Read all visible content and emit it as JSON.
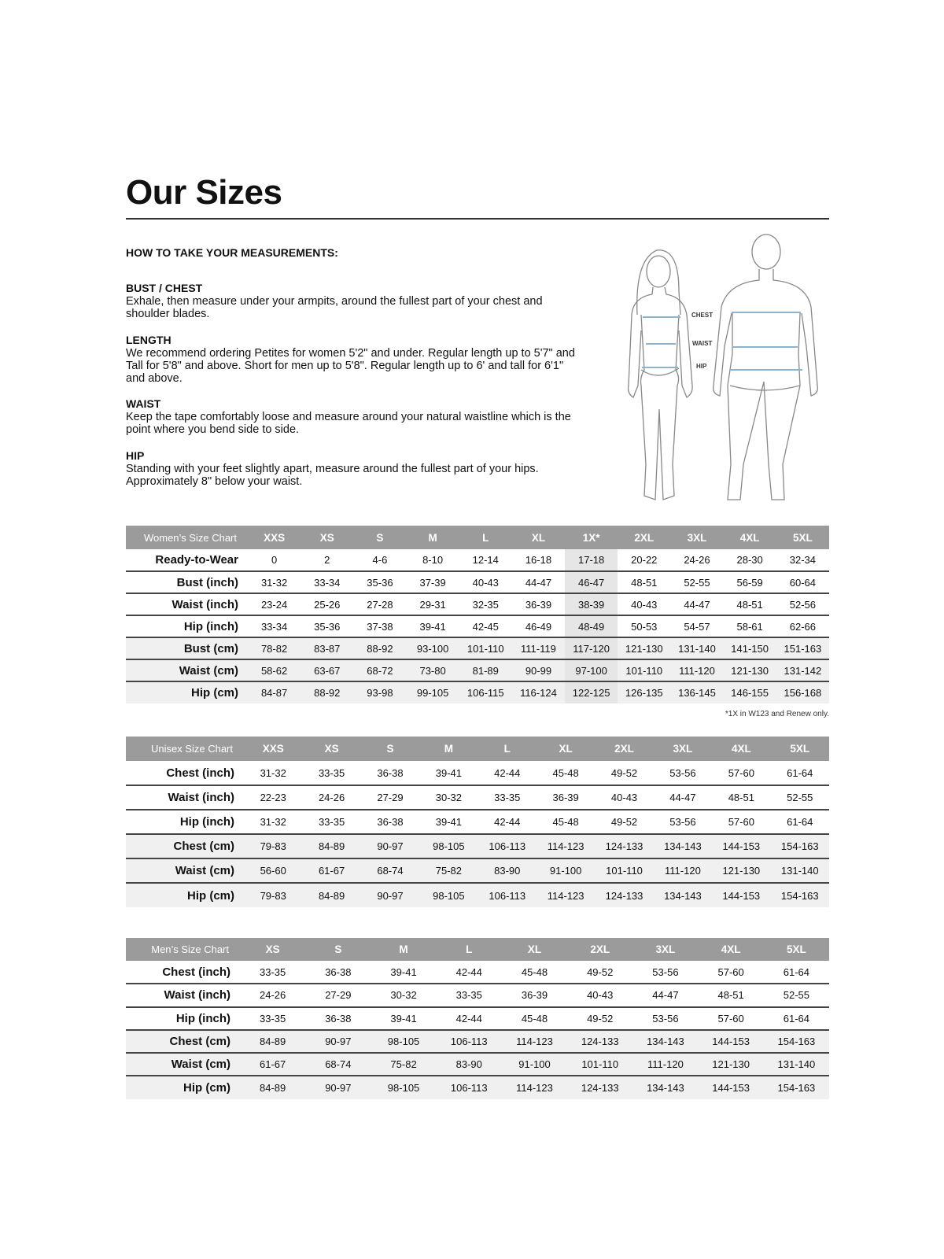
{
  "title": "Our Sizes",
  "howto": "HOW TO TAKE YOUR MEASUREMENTS:",
  "sections": [
    {
      "heading": "BUST / CHEST",
      "text": "Exhale, then measure under your armpits, around the fullest part of your chest and shoulder blades."
    },
    {
      "heading": "LENGTH",
      "text": "We recommend ordering Petites for women 5'2\" and under. Regular length up to 5'7\" and Tall for 5'8\" and above. Short for men up to 5'8\". Regular length up to 6' and tall for 6'1\" and above."
    },
    {
      "heading": "WAIST",
      "text": "Keep the tape comfortably loose and measure around your natural waistline which is the point where you bend side to side."
    },
    {
      "heading": "HIP",
      "text": "Standing with your feet slightly apart, measure around the fullest part of your hips. Approximately 8\" below your waist."
    }
  ],
  "figure_labels": {
    "chest": "CHEST",
    "waist": "WAIST",
    "hip": "HIP"
  },
  "colors": {
    "header_bg": "#9b9b9b",
    "cm_row_bg": "#f0f0f0",
    "highlight_col": "#e6e6e6",
    "measure_line": "#8fb3cc"
  },
  "women": {
    "title": "Women’s Size Chart",
    "sizes": [
      "XXS",
      "XS",
      "S",
      "M",
      "L",
      "XL",
      "1X*",
      "2XL",
      "3XL",
      "4XL",
      "5XL"
    ],
    "highlight_index": 6,
    "rows": [
      {
        "label": "Ready-to-Wear",
        "cm": false,
        "values": [
          "0",
          "2",
          "4-6",
          "8-10",
          "12-14",
          "16-18",
          "17-18",
          "20-22",
          "24-26",
          "28-30",
          "32-34"
        ]
      },
      {
        "label": "Bust (inch)",
        "cm": false,
        "values": [
          "31-32",
          "33-34",
          "35-36",
          "37-39",
          "40-43",
          "44-47",
          "46-47",
          "48-51",
          "52-55",
          "56-59",
          "60-64"
        ]
      },
      {
        "label": "Waist (inch)",
        "cm": false,
        "values": [
          "23-24",
          "25-26",
          "27-28",
          "29-31",
          "32-35",
          "36-39",
          "38-39",
          "40-43",
          "44-47",
          "48-51",
          "52-56"
        ]
      },
      {
        "label": "Hip (inch)",
        "cm": false,
        "values": [
          "33-34",
          "35-36",
          "37-38",
          "39-41",
          "42-45",
          "46-49",
          "48-49",
          "50-53",
          "54-57",
          "58-61",
          "62-66"
        ]
      },
      {
        "label": "Bust (cm)",
        "cm": true,
        "values": [
          "78-82",
          "83-87",
          "88-92",
          "93-100",
          "101-110",
          "111-119",
          "117-120",
          "121-130",
          "131-140",
          "141-150",
          "151-163"
        ]
      },
      {
        "label": "Waist (cm)",
        "cm": true,
        "values": [
          "58-62",
          "63-67",
          "68-72",
          "73-80",
          "81-89",
          "90-99",
          "97-100",
          "101-110",
          "111-120",
          "121-130",
          "131-142"
        ]
      },
      {
        "label": "Hip (cm)",
        "cm": true,
        "values": [
          "84-87",
          "88-92",
          "93-98",
          "99-105",
          "106-115",
          "116-124",
          "122-125",
          "126-135",
          "136-145",
          "146-155",
          "156-168"
        ]
      }
    ],
    "footnote": "*1X in W123 and Renew only."
  },
  "unisex": {
    "title": "Unisex Size Chart",
    "sizes": [
      "XXS",
      "XS",
      "S",
      "M",
      "L",
      "XL",
      "2XL",
      "3XL",
      "4XL",
      "5XL"
    ],
    "rows": [
      {
        "label": "Chest (inch)",
        "cm": false,
        "values": [
          "31-32",
          "33-35",
          "36-38",
          "39-41",
          "42-44",
          "45-48",
          "49-52",
          "53-56",
          "57-60",
          "61-64"
        ]
      },
      {
        "label": "Waist (inch)",
        "cm": false,
        "values": [
          "22-23",
          "24-26",
          "27-29",
          "30-32",
          "33-35",
          "36-39",
          "40-43",
          "44-47",
          "48-51",
          "52-55"
        ]
      },
      {
        "label": "Hip (inch)",
        "cm": false,
        "values": [
          "31-32",
          "33-35",
          "36-38",
          "39-41",
          "42-44",
          "45-48",
          "49-52",
          "53-56",
          "57-60",
          "61-64"
        ]
      },
      {
        "label": "Chest (cm)",
        "cm": true,
        "values": [
          "79-83",
          "84-89",
          "90-97",
          "98-105",
          "106-113",
          "114-123",
          "124-133",
          "134-143",
          "144-153",
          "154-163"
        ]
      },
      {
        "label": "Waist (cm)",
        "cm": true,
        "values": [
          "56-60",
          "61-67",
          "68-74",
          "75-82",
          "83-90",
          "91-100",
          "101-110",
          "111-120",
          "121-130",
          "131-140"
        ]
      },
      {
        "label": "Hip (cm)",
        "cm": true,
        "values": [
          "79-83",
          "84-89",
          "90-97",
          "98-105",
          "106-113",
          "114-123",
          "124-133",
          "134-143",
          "144-153",
          "154-163"
        ]
      }
    ]
  },
  "men": {
    "title": "Men’s Size Chart",
    "sizes": [
      "XS",
      "S",
      "M",
      "L",
      "XL",
      "2XL",
      "3XL",
      "4XL",
      "5XL"
    ],
    "rows": [
      {
        "label": "Chest (inch)",
        "cm": false,
        "values": [
          "33-35",
          "36-38",
          "39-41",
          "42-44",
          "45-48",
          "49-52",
          "53-56",
          "57-60",
          "61-64"
        ]
      },
      {
        "label": "Waist (inch)",
        "cm": false,
        "values": [
          "24-26",
          "27-29",
          "30-32",
          "33-35",
          "36-39",
          "40-43",
          "44-47",
          "48-51",
          "52-55"
        ]
      },
      {
        "label": "Hip (inch)",
        "cm": false,
        "values": [
          "33-35",
          "36-38",
          "39-41",
          "42-44",
          "45-48",
          "49-52",
          "53-56",
          "57-60",
          "61-64"
        ]
      },
      {
        "label": "Chest (cm)",
        "cm": true,
        "values": [
          "84-89",
          "90-97",
          "98-105",
          "106-113",
          "114-123",
          "124-133",
          "134-143",
          "144-153",
          "154-163"
        ]
      },
      {
        "label": "Waist (cm)",
        "cm": true,
        "values": [
          "61-67",
          "68-74",
          "75-82",
          "83-90",
          "91-100",
          "101-110",
          "111-120",
          "121-130",
          "131-140"
        ]
      },
      {
        "label": "Hip (cm)",
        "cm": true,
        "values": [
          "84-89",
          "90-97",
          "98-105",
          "106-113",
          "114-123",
          "124-133",
          "134-143",
          "144-153",
          "154-163"
        ]
      }
    ]
  }
}
